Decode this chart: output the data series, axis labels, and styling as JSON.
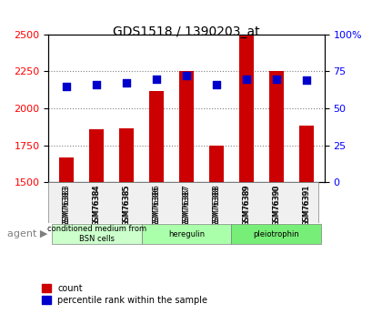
{
  "title": "GDS1518 / 1390203_at",
  "samples": [
    "GSM76383",
    "GSM76384",
    "GSM76385",
    "GSM76386",
    "GSM76387",
    "GSM76388",
    "GSM76389",
    "GSM76390",
    "GSM76391"
  ],
  "counts": [
    1670,
    1860,
    1865,
    2120,
    2250,
    1750,
    2495,
    2255,
    1880
  ],
  "percentiles": [
    65,
    66,
    67,
    70,
    72,
    66,
    70,
    70,
    69
  ],
  "groups": [
    {
      "label": "conditioned medium from\nBSN cells",
      "start": 0,
      "end": 3,
      "color": "#ccffcc"
    },
    {
      "label": "heregulin",
      "start": 3,
      "end": 6,
      "color": "#aaffaa"
    },
    {
      "label": "pleiotrophin",
      "start": 6,
      "end": 9,
      "color": "#77ee77"
    }
  ],
  "ylim_left": [
    1500,
    2500
  ],
  "ylim_right": [
    0,
    100
  ],
  "yticks_left": [
    1500,
    1750,
    2000,
    2250,
    2500
  ],
  "yticks_right": [
    0,
    25,
    50,
    75,
    100
  ],
  "bar_color": "#cc0000",
  "dot_color": "#0000cc",
  "bar_width": 0.5,
  "background_color": "#f0f0f0",
  "plot_bg": "#ffffff"
}
